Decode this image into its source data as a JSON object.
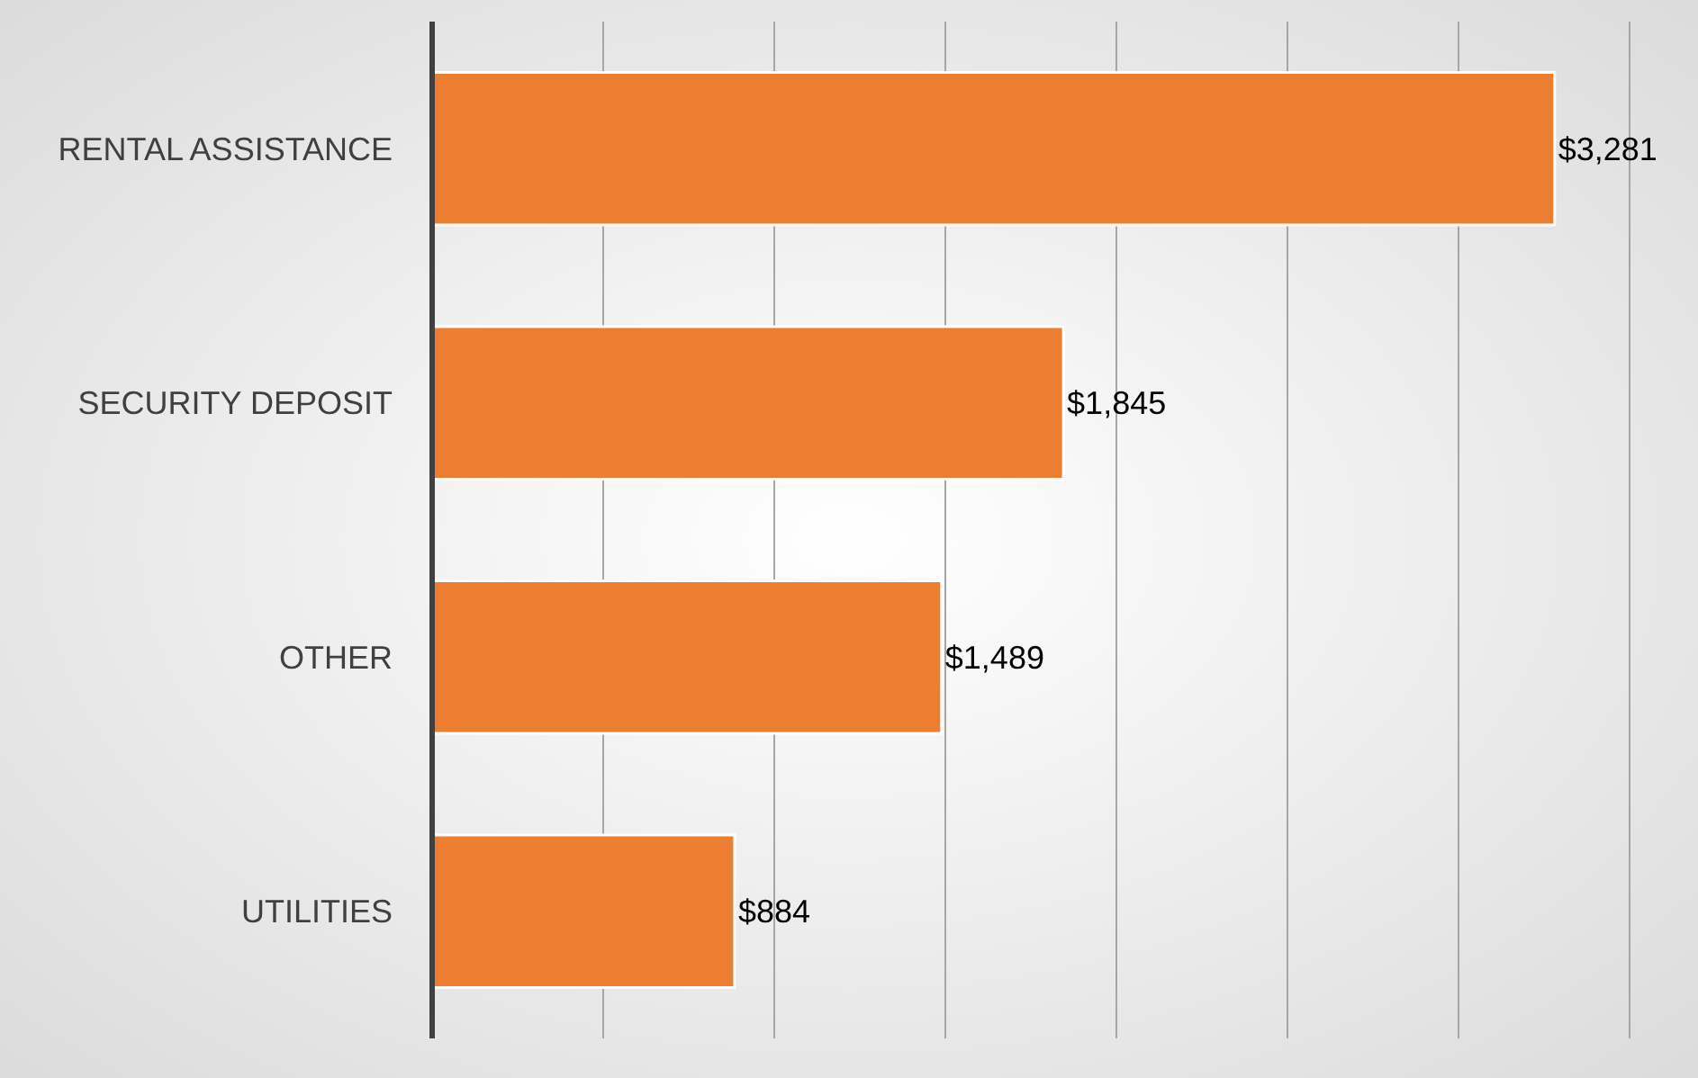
{
  "chart_data": {
    "type": "bar",
    "orientation": "horizontal",
    "categories": [
      "RENTAL ASSISTANCE",
      "SECURITY DEPOSIT",
      "OTHER",
      "UTILITIES"
    ],
    "values": [
      3281,
      1845,
      1489,
      884
    ],
    "value_labels": [
      "$3,281",
      "$1,845",
      "$1,489",
      "$884"
    ],
    "color": "#ed7d31",
    "xlim": [
      0,
      3500
    ],
    "xticks": [
      {
        "value": 0,
        "label": null
      },
      {
        "value": 500,
        "label": null
      },
      {
        "value": 1000,
        "label": null
      },
      {
        "value": 1500,
        "label": null
      },
      {
        "value": 2000,
        "label": null
      },
      {
        "value": 2500,
        "label": null
      },
      {
        "value": 3000,
        "label": null
      },
      {
        "value": 3500,
        "label": null
      }
    ],
    "grid": "x"
  }
}
